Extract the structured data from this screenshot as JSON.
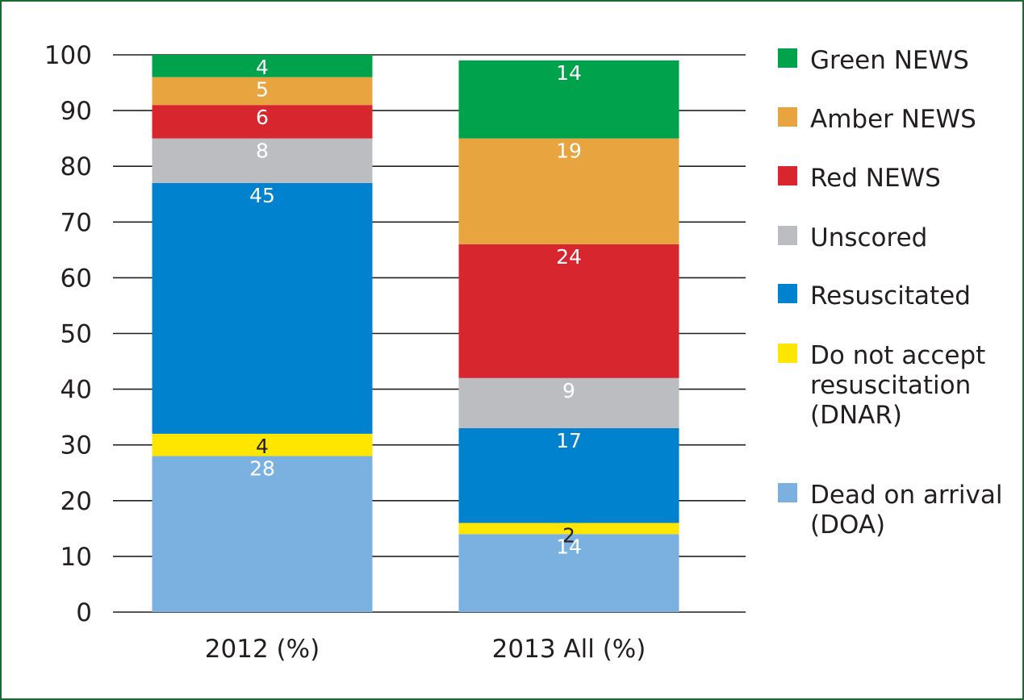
{
  "chart_data": {
    "type": "bar",
    "stacked": true,
    "title": "",
    "xlabel": "",
    "ylabel": "",
    "ylim": [
      0,
      100
    ],
    "yticks": [
      0,
      10,
      20,
      30,
      40,
      50,
      60,
      70,
      80,
      90,
      100
    ],
    "grid": true,
    "legend_position": "right",
    "categories": [
      "2012 (%)",
      "2013 All (%)"
    ],
    "series": [
      {
        "name": "Dead on arrival (DOA)",
        "legend_lines": [
          "Dead on arrival",
          "(DOA)"
        ],
        "color": "#7bb1e0",
        "label_color": "#ffffff",
        "values": [
          28,
          14
        ]
      },
      {
        "name": "Do not accept resuscitation (DNAR)",
        "legend_lines": [
          "Do not accept",
          "resuscitation",
          "(DNAR)"
        ],
        "color": "#ffe600",
        "label_color": "#231f20",
        "values": [
          4,
          2
        ]
      },
      {
        "name": "Resuscitated",
        "legend_lines": [
          "Resuscitated"
        ],
        "color": "#0082ce",
        "label_color": "#ffffff",
        "values": [
          45,
          17
        ]
      },
      {
        "name": "Unscored",
        "legend_lines": [
          "Unscored"
        ],
        "color": "#bcbdc0",
        "label_color": "#ffffff",
        "values": [
          8,
          9
        ]
      },
      {
        "name": "Red NEWS",
        "legend_lines": [
          "Red NEWS"
        ],
        "color": "#d7262d",
        "label_color": "#ffffff",
        "values": [
          6,
          24
        ]
      },
      {
        "name": "Amber NEWS",
        "legend_lines": [
          "Amber NEWS"
        ],
        "color": "#e8a43f",
        "label_color": "#ffffff",
        "values": [
          5,
          19
        ]
      },
      {
        "name": "Green NEWS",
        "legend_lines": [
          "Green NEWS"
        ],
        "color": "#00a24b",
        "label_color": "#ffffff",
        "values": [
          4,
          14
        ]
      }
    ],
    "legend_order": [
      "Green NEWS",
      "Amber NEWS",
      "Red NEWS",
      "Unscored",
      "Resuscitated",
      "Do not accept resuscitation (DNAR)",
      "Dead on arrival (DOA)"
    ]
  }
}
